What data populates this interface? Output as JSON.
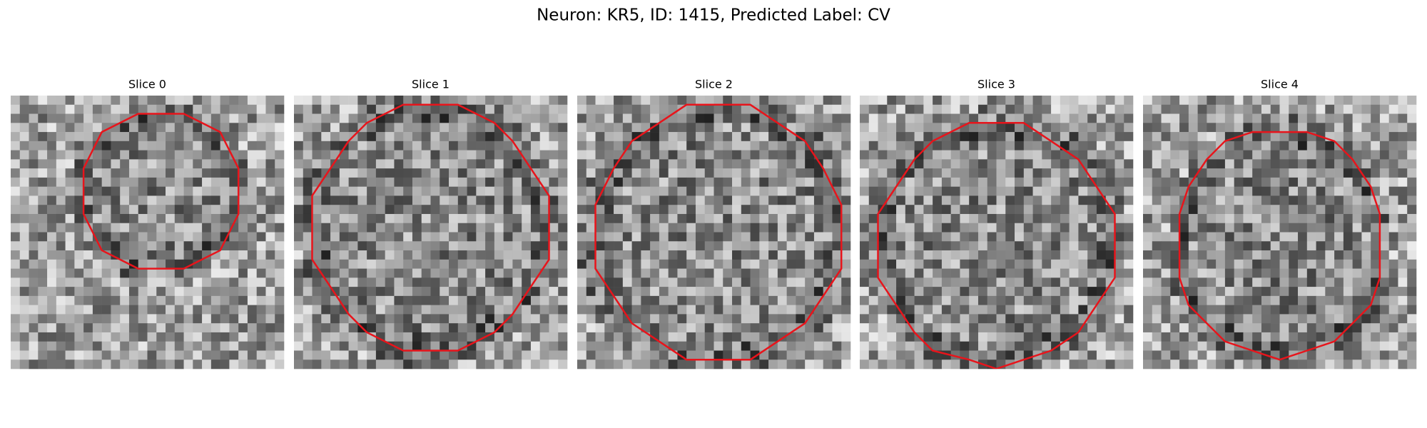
{
  "title": "Neuron: KR5, ID: 1415, Predicted Label: CV",
  "panels": [
    {
      "title": "Slice 0"
    },
    {
      "title": "Slice 1"
    },
    {
      "title": "Slice 2"
    },
    {
      "title": "Slice 3"
    },
    {
      "title": "Slice 4"
    }
  ]
}
